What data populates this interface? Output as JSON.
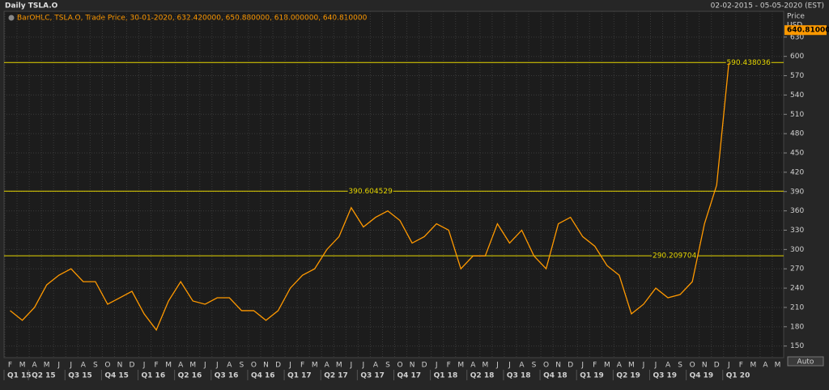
{
  "chart_data": {
    "type": "line",
    "title": "Daily TSLA.O",
    "date_range": "02-02-2015 - 05-05-2020 (EST)",
    "legend_text": "BarOHLC, TSLA.O, Trade Price, 30-01-2020, 632.420000, 650.880000, 618.000000, 640.810000",
    "y_axis_label": "Price",
    "y_axis_unit": "USD",
    "auto_button": "Auto",
    "categories": [
      "F",
      "M",
      "A",
      "M",
      "J",
      "J",
      "A",
      "S",
      "O",
      "N",
      "D",
      "J",
      "F",
      "M",
      "A",
      "M",
      "J",
      "J",
      "A",
      "S",
      "O",
      "N",
      "D",
      "J",
      "F",
      "M",
      "A",
      "M",
      "J",
      "J",
      "A",
      "S",
      "O",
      "N",
      "D",
      "J",
      "F",
      "M",
      "A",
      "M",
      "J",
      "J",
      "A",
      "S",
      "O",
      "N",
      "D",
      "J",
      "F",
      "M",
      "A",
      "M",
      "J",
      "J",
      "A",
      "S",
      "O",
      "N",
      "D",
      "J",
      "F",
      "M",
      "A",
      "M"
    ],
    "quarters": [
      "Q1 15",
      "Q2 15",
      "Q3 15",
      "Q4 15",
      "Q1 16",
      "Q2 16",
      "Q3 16",
      "Q4 16",
      "Q1 17",
      "Q2 17",
      "Q3 17",
      "Q4 17",
      "Q1 18",
      "Q2 18",
      "Q3 18",
      "Q4 18",
      "Q1 19",
      "Q2 19",
      "Q3 19",
      "Q4 19",
      "Q1 20"
    ],
    "series": [
      {
        "name": "TSLA.O",
        "color": "#ff9900",
        "values": [
          205,
          190,
          210,
          245,
          260,
          270,
          250,
          250,
          215,
          225,
          235,
          200,
          175,
          220,
          250,
          220,
          215,
          225,
          225,
          205,
          205,
          190,
          205,
          240,
          260,
          270,
          300,
          320,
          365,
          335,
          350,
          360,
          345,
          310,
          320,
          340,
          330,
          270,
          290,
          290,
          340,
          310,
          330,
          290,
          270,
          340,
          350,
          320,
          305,
          275,
          260,
          200,
          215,
          240,
          225,
          230,
          250,
          340,
          400,
          590,
          null,
          null,
          null,
          null
        ]
      }
    ],
    "last_price": {
      "value": 640.81,
      "label": "640.810000"
    },
    "levels": [
      590.438036,
      390.604529,
      290.209704
    ],
    "level_color": "#e6d600",
    "ylim": [
      132,
      670
    ],
    "yticks": [
      150,
      180,
      210,
      240,
      270,
      300,
      330,
      360,
      390,
      420,
      450,
      480,
      510,
      540,
      570,
      600,
      630
    ],
    "grid": true
  }
}
